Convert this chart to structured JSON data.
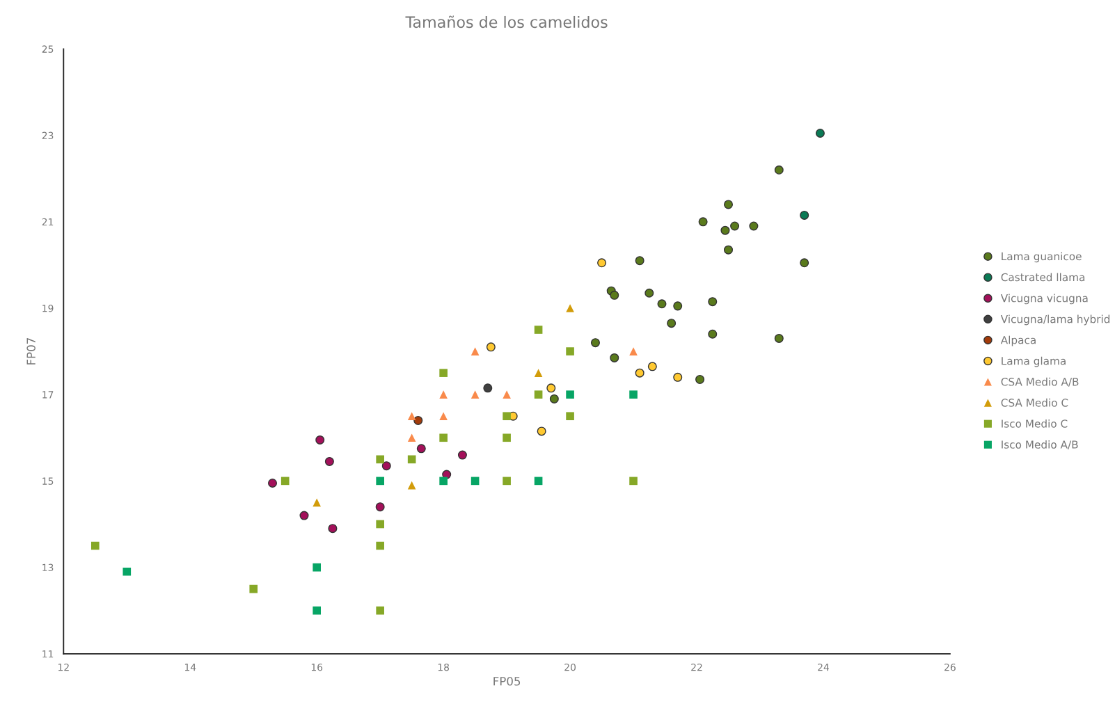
{
  "chart_data": {
    "type": "scatter",
    "title": "Tamaños de los camelidos",
    "xlabel": "FP05",
    "ylabel": "FP07",
    "xlim": [
      12,
      26
    ],
    "xticks": [
      12,
      14,
      16,
      18,
      20,
      22,
      24,
      26
    ],
    "ylim": [
      11,
      25
    ],
    "yticks": [
      11,
      13,
      15,
      17,
      19,
      21,
      23,
      25
    ],
    "grid": false,
    "legend": "right",
    "series": [
      {
        "name": "Lama guanicoe",
        "color": "#5a7a1c",
        "marker": "circle",
        "x": [
          23.3,
          22.5,
          22.1,
          22.45,
          22.6,
          22.9,
          22.5,
          23.7,
          21.1,
          20.65,
          20.7,
          21.25,
          21.45,
          21.7,
          22.25,
          21.6,
          22.25,
          23.3,
          20.4,
          20.7,
          22.05,
          19.75
        ],
        "values": [
          22.2,
          21.4,
          21.0,
          20.8,
          20.9,
          20.9,
          20.35,
          20.05,
          20.1,
          19.4,
          19.3,
          19.35,
          19.1,
          19.05,
          19.15,
          18.65,
          18.4,
          18.3,
          18.2,
          17.85,
          17.35,
          16.9
        ]
      },
      {
        "name": "Castrated llama",
        "color": "#0b7a55",
        "marker": "circle",
        "x": [
          23.95,
          23.7
        ],
        "values": [
          23.05,
          21.15
        ]
      },
      {
        "name": "Vicugna vicugna",
        "color": "#a3105a",
        "marker": "circle",
        "x": [
          15.3,
          16.05,
          16.2,
          15.8,
          16.25,
          17.0,
          17.1,
          17.65,
          18.05,
          18.3
        ],
        "values": [
          14.95,
          15.95,
          15.45,
          14.2,
          13.9,
          14.4,
          15.35,
          15.75,
          15.15,
          15.6
        ]
      },
      {
        "name": "Vicugna/lama hybrid",
        "color": "#404040",
        "marker": "circle",
        "x": [
          18.7
        ],
        "values": [
          17.15
        ]
      },
      {
        "name": "Alpaca",
        "color": "#a33b0a",
        "marker": "circle",
        "x": [
          17.6
        ],
        "values": [
          16.4
        ]
      },
      {
        "name": "Lama glama",
        "color": "#ffc931",
        "marker": "circle",
        "x": [
          20.5,
          18.75,
          19.7,
          19.1,
          19.55,
          21.1,
          21.3,
          21.7
        ],
        "values": [
          20.05,
          18.1,
          17.15,
          16.5,
          16.15,
          17.5,
          17.65,
          17.4
        ]
      },
      {
        "name": "CSA Medio A/B",
        "color": "#f98a4b",
        "marker": "triangle",
        "x": [
          18.5,
          18,
          18.5,
          19,
          17.5,
          18,
          17.5,
          21
        ],
        "values": [
          18,
          17,
          17,
          17,
          16.5,
          16.5,
          16,
          18
        ]
      },
      {
        "name": "CSA Medio C",
        "color": "#d29c0a",
        "marker": "triangle",
        "x": [
          20,
          19.5,
          16,
          17.5
        ],
        "values": [
          19,
          17.5,
          14.5,
          14.9
        ]
      },
      {
        "name": "Isco Medio C",
        "color": "#86a827",
        "marker": "square",
        "x": [
          12.5,
          15,
          15.5,
          17,
          17,
          17,
          17,
          17.5,
          18,
          18,
          19,
          19,
          19,
          19.5,
          19.5,
          20,
          20,
          21
        ],
        "values": [
          13.5,
          12.5,
          15,
          15.5,
          14,
          13.5,
          12,
          15.5,
          17.5,
          16,
          16.5,
          16,
          15,
          18.5,
          17,
          18,
          16.5,
          15
        ]
      },
      {
        "name": "Isco Medio A/B",
        "color": "#07a565",
        "marker": "square",
        "x": [
          13,
          16,
          16,
          17,
          18,
          18.5,
          19.5,
          20,
          21
        ],
        "values": [
          12.9,
          13,
          12,
          15,
          15,
          15,
          15,
          17,
          17
        ]
      }
    ]
  }
}
